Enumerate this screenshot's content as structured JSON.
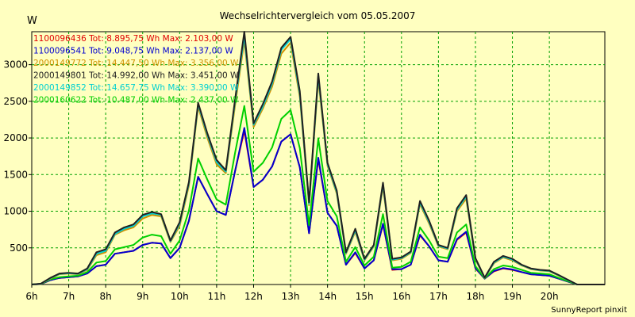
{
  "chart_data": {
    "type": "line",
    "title": "Wechselrichtervergleich vom 05.05.2007",
    "ylabel": "W",
    "xlabel": "",
    "x_ticks": [
      "6h",
      "7h",
      "8h",
      "9h",
      "10h",
      "11h",
      "12h",
      "13h",
      "14h",
      "15h",
      "16h",
      "17h",
      "18h",
      "19h",
      "20h"
    ],
    "y_ticks": [
      500,
      1000,
      1500,
      2000,
      2500,
      3000
    ],
    "xlim": [
      6.0,
      21.5
    ],
    "ylim": [
      0,
      3450
    ],
    "grid": true,
    "legend_position": "top-left",
    "background": "#ffffc0",
    "x": [
      6.0,
      6.25,
      6.5,
      6.75,
      7.0,
      7.25,
      7.5,
      7.75,
      8.0,
      8.25,
      8.5,
      8.75,
      9.0,
      9.25,
      9.5,
      9.75,
      10.0,
      10.25,
      10.5,
      10.75,
      11.0,
      11.25,
      11.5,
      11.75,
      12.0,
      12.25,
      12.5,
      12.75,
      13.0,
      13.25,
      13.5,
      13.75,
      14.0,
      14.25,
      14.5,
      14.75,
      15.0,
      15.25,
      15.5,
      15.75,
      16.0,
      16.25,
      16.5,
      16.75,
      17.0,
      17.25,
      17.5,
      17.75,
      18.0,
      18.25,
      18.5,
      18.75,
      19.0,
      19.25,
      19.5,
      19.75,
      20.0,
      20.25,
      20.5,
      20.75,
      21.0,
      21.25,
      21.5
    ],
    "series": [
      {
        "name": "1100096436 Tot: 8.895,75 Wh Max: 2.103,00 W",
        "color": "#e00000",
        "values": [
          0,
          5,
          60,
          90,
          100,
          110,
          150,
          250,
          270,
          420,
          440,
          460,
          540,
          570,
          560,
          360,
          500,
          870,
          1470,
          1230,
          1000,
          950,
          1550,
          2100,
          1330,
          1430,
          1610,
          1950,
          2050,
          1600,
          700,
          1710,
          980,
          800,
          270,
          430,
          220,
          330,
          820,
          200,
          210,
          270,
          670,
          520,
          330,
          310,
          610,
          710,
          220,
          80,
          180,
          220,
          200,
          170,
          140,
          130,
          120,
          80,
          40,
          0,
          0,
          0,
          0
        ]
      },
      {
        "name": "1100096541 Tot: 9.048,75 Wh Max: 2.137,00 W",
        "color": "#0000d0",
        "values": [
          0,
          5,
          60,
          90,
          100,
          110,
          150,
          250,
          270,
          420,
          440,
          460,
          540,
          570,
          560,
          360,
          500,
          870,
          1470,
          1230,
          1000,
          950,
          1550,
          2137,
          1330,
          1430,
          1610,
          1950,
          2050,
          1600,
          700,
          1730,
          980,
          800,
          270,
          440,
          220,
          330,
          830,
          210,
          210,
          270,
          680,
          520,
          330,
          310,
          620,
          720,
          225,
          80,
          185,
          225,
          205,
          170,
          140,
          130,
          120,
          80,
          40,
          0,
          0,
          0,
          0
        ]
      },
      {
        "name": "2000149772 Tot: 14.447,50 Wh Max: 3.356,00 W",
        "color": "#d09000",
        "values": [
          0,
          10,
          80,
          140,
          150,
          140,
          200,
          400,
          440,
          680,
          740,
          780,
          900,
          950,
          930,
          580,
          800,
          1350,
          2430,
          2000,
          1640,
          1520,
          2450,
          3330,
          2150,
          2400,
          2700,
          3150,
          3300,
          2560,
          1080,
          2800,
          1620,
          1240,
          420,
          720,
          330,
          520,
          1340,
          330,
          350,
          430,
          1100,
          830,
          520,
          480,
          1000,
          1170,
          340,
          90,
          290,
          370,
          330,
          260,
          210,
          190,
          180,
          120,
          60,
          0,
          0,
          0,
          0
        ]
      },
      {
        "name": "2000149801 Tot: 14.992,00 Wh Max: 3.451,00 W",
        "color": "#202020",
        "values": [
          0,
          12,
          90,
          150,
          160,
          150,
          220,
          440,
          480,
          710,
          780,
          820,
          950,
          990,
          960,
          600,
          850,
          1400,
          2480,
          2060,
          1700,
          1560,
          2530,
          3451,
          2200,
          2460,
          2770,
          3230,
          3380,
          2640,
          1120,
          2880,
          1660,
          1280,
          440,
          760,
          350,
          540,
          1390,
          350,
          370,
          450,
          1140,
          870,
          540,
          500,
          1040,
          1220,
          360,
          95,
          310,
          390,
          350,
          270,
          220,
          200,
          190,
          130,
          65,
          0,
          0,
          0,
          0
        ]
      },
      {
        "name": "2000149852 Tot: 14.657,75 Wh Max: 3.390,00 W",
        "color": "#00d0d0",
        "values": [
          0,
          11,
          85,
          145,
          155,
          145,
          210,
          420,
          460,
          690,
          760,
          800,
          930,
          970,
          950,
          590,
          830,
          1380,
          2460,
          2040,
          1670,
          1540,
          2500,
          3390,
          2180,
          2430,
          2740,
          3200,
          3350,
          2600,
          1100,
          2850,
          1640,
          1260,
          430,
          740,
          340,
          530,
          1370,
          340,
          360,
          440,
          1120,
          850,
          530,
          490,
          1020,
          1200,
          350,
          92,
          300,
          380,
          340,
          265,
          215,
          195,
          185,
          125,
          62,
          0,
          0,
          0,
          0
        ]
      },
      {
        "name": "2000160622 Tot: 10.487,00 Wh Max: 2.437,00 W",
        "color": "#00d000",
        "values": [
          0,
          8,
          70,
          100,
          110,
          120,
          170,
          300,
          320,
          480,
          510,
          540,
          640,
          680,
          660,
          420,
          600,
          1010,
          1720,
          1430,
          1160,
          1090,
          1800,
          2437,
          1540,
          1660,
          1870,
          2260,
          2380,
          1860,
          810,
          1990,
          1140,
          930,
          310,
          510,
          260,
          380,
          960,
          230,
          240,
          310,
          780,
          600,
          380,
          360,
          710,
          820,
          250,
          85,
          210,
          260,
          240,
          200,
          160,
          150,
          140,
          90,
          45,
          0,
          0,
          0,
          0
        ]
      }
    ]
  },
  "credit": "SunnyReport pinxit"
}
